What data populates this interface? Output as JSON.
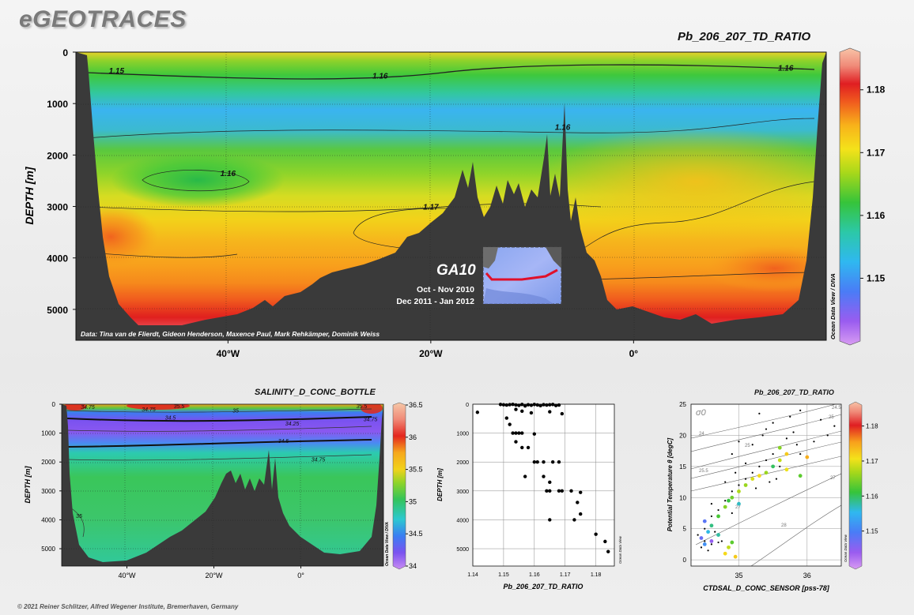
{
  "brand": "eGEOTRACES",
  "copyright": "© 2021 Reiner Schlitzer, Alfred Wegener Institute, Bremerhaven, Germany",
  "main_section": {
    "title": "Pb_206_207_TD_RATIO",
    "ylabel": "DEPTH [m]",
    "credit": "Data: Tina van de Flierdt, Gideon Henderson, Maxence Paul, Mark Rehkämper, Dominik Weiss",
    "odv_label": "Ocean Data View / DIVA",
    "inset": {
      "cruise": "GA10",
      "date1": "Oct - Nov 2010",
      "date2": "Dec 2011 - Jan 2012"
    }
  },
  "salinity_panel": {
    "title": "SALINITY_D_CONC_BOTTLE",
    "ylabel": "DEPTH [m]",
    "odv_label": "Ocean Data View / DIVA"
  },
  "profile_panel": {
    "xlabel": "Pb_206_207_TD_RATIO",
    "ylabel": "DEPTH [m]",
    "odv_label": "Ocean Data View"
  },
  "ts_panel": {
    "title": "Pb_206_207_TD_RATIO",
    "xlabel": "CTDSAL_D_CONC_SENSOR [pss-78]",
    "ylabel": "Potential Temperature θ [degC]",
    "sigma_label": "σ0",
    "odv_label": "Ocean Data View"
  },
  "colors": {
    "plot_bg": "#ffffff",
    "bathymetry": "#3a3a3a",
    "track": "#e0102a"
  },
  "chart_data": [
    {
      "type": "heatmap",
      "title": "Pb_206_207_TD_RATIO",
      "ylabel": "DEPTH [m]",
      "x_tick_labels": [
        "40°W",
        "20°W",
        "0°"
      ],
      "x_ticks": [
        -40,
        -20,
        0
      ],
      "xlim": [
        -55,
        19
      ],
      "y_ticks": [
        0,
        1000,
        2000,
        3000,
        4000,
        5000
      ],
      "ylim": [
        0,
        5600
      ],
      "colorbar": {
        "ticks": [
          1.15,
          1.16,
          1.17,
          1.18
        ],
        "range": [
          1.14,
          1.186
        ]
      },
      "contour_labels": [
        {
          "text": "1.15",
          "x": -51,
          "depth": 350
        },
        {
          "text": "1.16",
          "x": -25,
          "depth": 450
        },
        {
          "text": "1.16",
          "x": 15,
          "depth": 300
        },
        {
          "text": "1.16",
          "x": -7,
          "depth": 1450
        },
        {
          "text": "1.16",
          "x": -40,
          "depth": 2350
        },
        {
          "text": "1.17",
          "x": -20,
          "depth": 3000
        }
      ]
    },
    {
      "type": "heatmap",
      "title": "SALINITY_D_CONC_BOTTLE",
      "ylabel": "DEPTH [m]",
      "x_tick_labels": [
        "40°W",
        "20°W",
        "0°"
      ],
      "x_ticks": [
        -40,
        -20,
        0
      ],
      "xlim": [
        -55,
        19
      ],
      "y_ticks": [
        0,
        1000,
        2000,
        3000,
        4000,
        5000
      ],
      "ylim": [
        0,
        5600
      ],
      "colorbar": {
        "ticks": [
          34,
          34.5,
          35,
          35.5,
          36,
          36.5
        ],
        "range": [
          34,
          36.5
        ]
      },
      "contour_labels": [
        {
          "text": "34.75",
          "x": -49,
          "depth": 80
        },
        {
          "text": "34.75",
          "x": -35,
          "depth": 160
        },
        {
          "text": "35.5",
          "x": -28,
          "depth": 60
        },
        {
          "text": "35",
          "x": -15,
          "depth": 200
        },
        {
          "text": "34.5",
          "x": -30,
          "depth": 450
        },
        {
          "text": "34.25",
          "x": -2,
          "depth": 650
        },
        {
          "text": "34.5",
          "x": -4,
          "depth": 1250
        },
        {
          "text": "34.75",
          "x": 4,
          "depth": 1900
        },
        {
          "text": "35",
          "x": -51,
          "depth": 3850
        },
        {
          "text": "35.5",
          "x": 14,
          "depth": 60
        },
        {
          "text": "34.75",
          "x": 16,
          "depth": 500
        }
      ]
    },
    {
      "type": "scatter",
      "xlabel": "Pb_206_207_TD_RATIO",
      "ylabel": "DEPTH [m]",
      "xlim": [
        1.14,
        1.186
      ],
      "ylim": [
        0,
        5600
      ],
      "x_ticks": [
        1.14,
        1.15,
        1.16,
        1.17,
        1.18
      ],
      "y_ticks": [
        0,
        1000,
        2000,
        3000,
        4000,
        5000
      ],
      "points": [
        [
          1.1415,
          280
        ],
        [
          1.149,
          10
        ],
        [
          1.15,
          20
        ],
        [
          1.151,
          30
        ],
        [
          1.152,
          15
        ],
        [
          1.153,
          5
        ],
        [
          1.154,
          25
        ],
        [
          1.155,
          40
        ],
        [
          1.156,
          10
        ],
        [
          1.157,
          60
        ],
        [
          1.158,
          20
        ],
        [
          1.159,
          35
        ],
        [
          1.16,
          10
        ],
        [
          1.161,
          25
        ],
        [
          1.162,
          50
        ],
        [
          1.163,
          15
        ],
        [
          1.164,
          30
        ],
        [
          1.165,
          20
        ],
        [
          1.166,
          10
        ],
        [
          1.167,
          45
        ],
        [
          1.168,
          30
        ],
        [
          1.154,
          180
        ],
        [
          1.156,
          240
        ],
        [
          1.159,
          300
        ],
        [
          1.165,
          260
        ],
        [
          1.169,
          330
        ],
        [
          1.151,
          480
        ],
        [
          1.152,
          700
        ],
        [
          1.153,
          1000
        ],
        [
          1.154,
          1000
        ],
        [
          1.155,
          1000
        ],
        [
          1.156,
          1000
        ],
        [
          1.154,
          1300
        ],
        [
          1.156,
          1500
        ],
        [
          1.158,
          1500
        ],
        [
          1.16,
          1030
        ],
        [
          1.157,
          2500
        ],
        [
          1.16,
          2000
        ],
        [
          1.161,
          2000
        ],
        [
          1.163,
          2000
        ],
        [
          1.166,
          2000
        ],
        [
          1.168,
          2000
        ],
        [
          1.163,
          2500
        ],
        [
          1.165,
          2700
        ],
        [
          1.164,
          3000
        ],
        [
          1.165,
          3000
        ],
        [
          1.168,
          3000
        ],
        [
          1.169,
          3000
        ],
        [
          1.172,
          3000
        ],
        [
          1.175,
          3050
        ],
        [
          1.174,
          3400
        ],
        [
          1.175,
          3800
        ],
        [
          1.173,
          4000
        ],
        [
          1.165,
          4000
        ],
        [
          1.18,
          4500
        ],
        [
          1.183,
          4750
        ],
        [
          1.184,
          5100
        ]
      ]
    },
    {
      "type": "scatter",
      "title": "Pb_206_207_TD_RATIO",
      "xlabel": "CTDSAL_D_CONC_SENSOR [pss-78]",
      "ylabel": "Potential Temperature θ [degC]",
      "xlim": [
        34.3,
        36.5
      ],
      "ylim": [
        -1,
        25
      ],
      "x_ticks": [
        35,
        36
      ],
      "y_ticks": [
        0,
        5,
        10,
        15,
        20,
        25
      ],
      "isopycnals": [
        23,
        24,
        25,
        25.5,
        26,
        27,
        28
      ],
      "colorbar": {
        "ticks": [
          1.15,
          1.16,
          1.17,
          1.18
        ],
        "range": [
          1.14,
          1.186
        ]
      },
      "colored_points": [
        [
          34.45,
          3.5,
          1.148
        ],
        [
          34.5,
          2.5,
          1.152
        ],
        [
          34.55,
          4.5,
          1.156
        ],
        [
          34.6,
          5.5,
          1.159
        ],
        [
          34.7,
          7.0,
          1.162
        ],
        [
          34.8,
          8.5,
          1.165
        ],
        [
          34.85,
          9.5,
          1.161
        ],
        [
          34.9,
          10.0,
          1.164
        ],
        [
          35.0,
          11.0,
          1.167
        ],
        [
          35.1,
          12.0,
          1.166
        ],
        [
          35.2,
          13.0,
          1.169
        ],
        [
          35.3,
          13.5,
          1.171
        ],
        [
          35.4,
          14.0,
          1.166
        ],
        [
          35.5,
          15.0,
          1.16
        ],
        [
          35.6,
          16.0,
          1.168
        ],
        [
          35.7,
          17.0,
          1.172
        ],
        [
          35.6,
          18.0,
          1.165
        ],
        [
          34.8,
          1.0,
          1.171
        ],
        [
          34.85,
          2.0,
          1.168
        ],
        [
          34.9,
          2.8,
          1.163
        ],
        [
          34.95,
          0.5,
          1.172
        ],
        [
          34.5,
          6.2,
          1.149
        ],
        [
          35.0,
          9.0,
          1.157
        ],
        [
          35.7,
          14.5,
          1.17
        ],
        [
          35.9,
          13.5,
          1.163
        ],
        [
          36.0,
          16.5,
          1.174
        ],
        [
          34.6,
          3.0,
          1.145
        ],
        [
          34.7,
          4.0,
          1.158
        ]
      ],
      "black_points": [
        [
          34.4,
          4.0
        ],
        [
          34.5,
          5.0
        ],
        [
          34.6,
          7.0
        ],
        [
          34.7,
          8.0
        ],
        [
          34.8,
          9.5
        ],
        [
          34.9,
          11.0
        ],
        [
          35.0,
          12.0
        ],
        [
          35.1,
          13.0
        ],
        [
          35.2,
          14.0
        ],
        [
          35.3,
          15.0
        ],
        [
          35.4,
          16.0
        ],
        [
          35.5,
          17.0
        ],
        [
          35.6,
          18.0
        ],
        [
          35.7,
          19.5
        ],
        [
          35.8,
          20.5
        ],
        [
          35.5,
          22.0
        ],
        [
          35.3,
          23.5
        ],
        [
          35.9,
          24.0
        ],
        [
          36.2,
          22.5
        ],
        [
          35.4,
          21.0
        ],
        [
          35.0,
          19.0
        ],
        [
          34.9,
          17.0
        ],
        [
          35.2,
          18.5
        ],
        [
          35.6,
          15.0
        ],
        [
          35.9,
          17.0
        ],
        [
          35.1,
          15.5
        ],
        [
          34.8,
          12.5
        ],
        [
          34.6,
          9.0
        ],
        [
          34.95,
          14.0
        ],
        [
          35.35,
          20.0
        ],
        [
          35.75,
          23.0
        ],
        [
          36.4,
          21.5
        ],
        [
          36.3,
          20.0
        ],
        [
          34.45,
          2.0
        ],
        [
          34.55,
          1.5
        ],
        [
          34.6,
          2.5
        ],
        [
          34.7,
          2.8
        ],
        [
          34.75,
          3.0
        ],
        [
          34.5,
          3.0
        ],
        [
          34.65,
          4.5
        ],
        [
          35.45,
          12.5
        ],
        [
          35.85,
          18.5
        ],
        [
          36.1,
          19.0
        ],
        [
          34.9,
          7.5
        ],
        [
          35.25,
          11.5
        ],
        [
          35.55,
          13.0
        ]
      ]
    }
  ]
}
